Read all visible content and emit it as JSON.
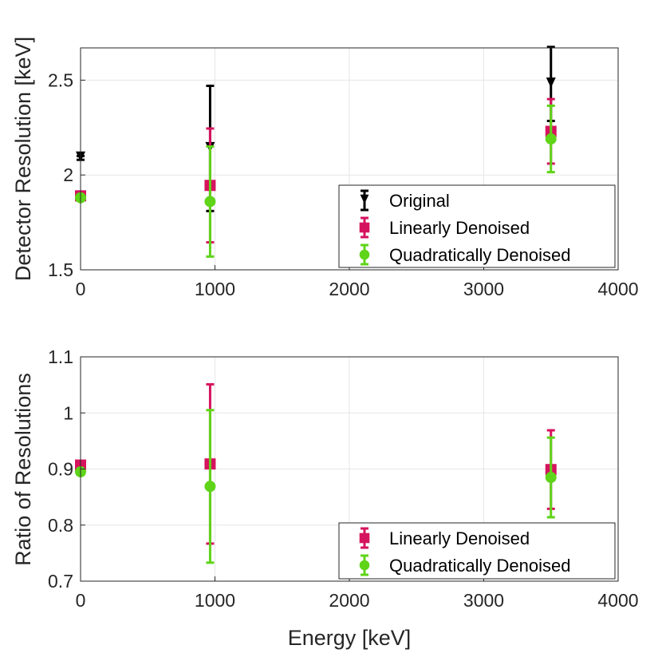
{
  "colors": {
    "original": "#000000",
    "linear": "#d6135e",
    "quadratic": "#5fd419",
    "grid": "#e6e6e6",
    "axis": "#262626"
  },
  "chart_data": [
    {
      "type": "scatter",
      "title": "",
      "xlabel": "",
      "ylabel": "Detector Resolution [keV]",
      "xlim": [
        0,
        4000
      ],
      "ylim": [
        1.5,
        2.67
      ],
      "xticks": [
        0,
        1000,
        2000,
        3000,
        4000
      ],
      "yticks": [
        1.5,
        2,
        2.5
      ],
      "xtick_labels": [
        "0",
        "1000",
        "2000",
        "3000",
        "4000"
      ],
      "ytick_labels": [
        "1.5",
        "2",
        "2.5"
      ],
      "grid": true,
      "legend_position": "bottom-right",
      "series": [
        {
          "name": "Original",
          "color_key": "original",
          "marker": "triangle-down",
          "points": [
            {
              "x": 0,
              "y": 2.09,
              "err": 0.01
            },
            {
              "x": 964,
              "y": 2.14,
              "err": 0.33
            },
            {
              "x": 3500,
              "y": 2.48,
              "err": 0.195
            }
          ]
        },
        {
          "name": "Linearly Denoised",
          "color_key": "linear",
          "marker": "square",
          "points": [
            {
              "x": 0,
              "y": 1.89,
              "err": 0.01
            },
            {
              "x": 964,
              "y": 1.945,
              "err": 0.3
            },
            {
              "x": 3500,
              "y": 2.23,
              "err": 0.17
            }
          ]
        },
        {
          "name": "Quadratically Denoised",
          "color_key": "quadratic",
          "marker": "circle",
          "points": [
            {
              "x": 0,
              "y": 1.88,
              "err": 0.008
            },
            {
              "x": 964,
              "y": 1.86,
              "err": 0.29
            },
            {
              "x": 3500,
              "y": 2.19,
              "err": 0.175
            }
          ]
        }
      ]
    },
    {
      "type": "scatter",
      "title": "",
      "xlabel": "Energy [keV]",
      "ylabel": "Ratio of Resolutions",
      "xlim": [
        0,
        4000
      ],
      "ylim": [
        0.7,
        1.1
      ],
      "xticks": [
        0,
        1000,
        2000,
        3000,
        4000
      ],
      "yticks": [
        0.7,
        0.8,
        0.9,
        1,
        1.1
      ],
      "xtick_labels": [
        "0",
        "1000",
        "2000",
        "3000",
        "4000"
      ],
      "ytick_labels": [
        "0.7",
        "0.8",
        "0.9",
        "1",
        "1.1"
      ],
      "grid": true,
      "legend_position": "bottom-right",
      "series": [
        {
          "name": "Linearly Denoised",
          "color_key": "linear",
          "marker": "square",
          "points": [
            {
              "x": 0,
              "y": 0.907,
              "err": 0.003
            },
            {
              "x": 964,
              "y": 0.909,
              "err": 0.142
            },
            {
              "x": 3500,
              "y": 0.899,
              "err": 0.07
            }
          ]
        },
        {
          "name": "Quadratically Denoised",
          "color_key": "quadratic",
          "marker": "circle",
          "points": [
            {
              "x": 0,
              "y": 0.895,
              "err": 0.003
            },
            {
              "x": 964,
              "y": 0.869,
              "err": 0.136
            },
            {
              "x": 3500,
              "y": 0.885,
              "err": 0.071
            }
          ]
        }
      ]
    }
  ]
}
